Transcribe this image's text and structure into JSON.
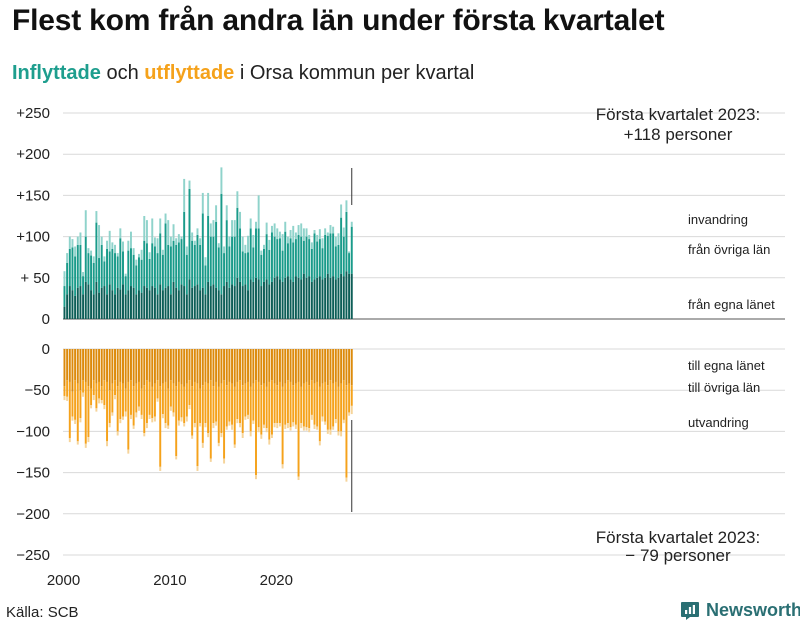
{
  "title": "Flest kom från andra län under första kvartalet",
  "subtitle": {
    "inflyttade": "Inflyttade",
    "och": "och",
    "utflyttade": "utflyttade",
    "rest": "i Orsa kommun per kvartal"
  },
  "source": "Källa: SCB",
  "brand": "Newsworthy",
  "colors": {
    "in_egna": "#0d5e57",
    "in_ovriga": "#1a9b8a",
    "in_invandring": "#8fd3cb",
    "ut_egna": "#dc8a0b",
    "ut_ovriga": "#f5a21b",
    "ut_utvandring": "#f6d49a",
    "grid": "#d9d9d9",
    "brand": "#2a6f73"
  },
  "chart_data": {
    "type": "stacked-bar",
    "x_unit": "quarter",
    "start_year": 2000,
    "start_quarter": 1,
    "x_ticks": [
      "2000",
      "2010",
      "2020"
    ],
    "upper_ticks": [
      "+250",
      "+200",
      "+150",
      "+100",
      "+ 50",
      "0"
    ],
    "lower_ticks": [
      "0",
      "−50",
      "−100",
      "−150",
      "−200",
      "−250"
    ],
    "upper_ylim": [
      0,
      250
    ],
    "lower_ylim": [
      -250,
      0
    ],
    "inflyttade": {
      "from_egna_lanet": [
        15,
        30,
        40,
        35,
        28,
        38,
        40,
        30,
        45,
        42,
        35,
        30,
        45,
        32,
        38,
        40,
        30,
        42,
        35,
        30,
        38,
        36,
        42,
        30,
        35,
        40,
        38,
        30,
        35,
        32,
        40,
        38,
        35,
        40,
        38,
        30,
        42,
        35,
        38,
        40,
        30,
        45,
        38,
        35,
        42,
        40,
        30,
        48,
        38,
        40,
        42,
        35,
        38,
        30,
        45,
        40,
        42,
        38,
        35,
        30,
        40,
        45,
        38,
        42,
        40,
        50,
        45,
        40,
        42,
        35,
        48,
        45,
        50,
        48,
        40,
        45,
        48,
        42,
        45,
        50,
        52,
        48,
        45,
        50,
        52,
        48,
        45,
        52,
        50,
        48,
        55,
        50,
        52,
        45,
        48,
        50,
        52,
        48,
        50,
        55,
        50,
        52,
        48,
        50,
        55,
        52,
        58,
        55,
        55
      ],
      "from_ovriga_lan": [
        25,
        38,
        45,
        52,
        48,
        52,
        50,
        22,
        55,
        38,
        42,
        38,
        72,
        42,
        52,
        30,
        55,
        40,
        50,
        50,
        38,
        62,
        40,
        22,
        48,
        46,
        40,
        35,
        40,
        40,
        55,
        54,
        38,
        52,
        50,
        50,
        62,
        43,
        78,
        50,
        58,
        50,
        52,
        58,
        55,
        90,
        48,
        110,
        57,
        50,
        60,
        55,
        90,
        35,
        80,
        60,
        58,
        80,
        52,
        122,
        40,
        75,
        50,
        58,
        60,
        85,
        65,
        42,
        38,
        46,
        62,
        42,
        60,
        62,
        38,
        40,
        55,
        42,
        60,
        50,
        45,
        50,
        38,
        56,
        40,
        50,
        48,
        45,
        52,
        52,
        40,
        50,
        45,
        40,
        56,
        44,
        45,
        38,
        52,
        46,
        54,
        52,
        40,
        40,
        68,
        48,
        72,
        25,
        57
      ],
      "invandring": [
        18,
        12,
        15,
        10,
        12,
        10,
        15,
        5,
        32,
        6,
        6,
        8,
        14,
        40,
        10,
        6,
        10,
        25,
        8,
        10,
        4,
        12,
        12,
        3,
        12,
        20,
        8,
        7,
        4,
        12,
        30,
        28,
        8,
        30,
        11,
        18,
        18,
        6,
        12,
        30,
        12,
        20,
        8,
        10,
        3,
        40,
        10,
        10,
        10,
        5,
        8,
        8,
        25,
        10,
        28,
        16,
        20,
        20,
        5,
        32,
        8,
        18,
        12,
        20,
        20,
        20,
        20,
        18,
        10,
        20,
        12,
        15,
        8,
        40,
        5,
        5,
        14,
        12,
        8,
        16,
        13,
        8,
        20,
        12,
        8,
        10,
        20,
        8,
        12,
        16,
        15,
        10,
        5,
        8,
        4,
        8,
        12,
        12,
        8,
        4,
        10,
        8,
        12,
        14,
        16,
        11,
        14,
        2,
        6
      ]
    },
    "utflyttade": {
      "till_egna_lanet": [
        -45,
        -38,
        -40,
        -52,
        -38,
        -42,
        -50,
        -38,
        -40,
        -45,
        -48,
        -38,
        -42,
        -40,
        -45,
        -38,
        -40,
        -50,
        -42,
        -38,
        -45,
        -40,
        -42,
        -48,
        -40,
        -38,
        -45,
        -42,
        -40,
        -48,
        -44,
        -38,
        -40,
        -46,
        -42,
        -38,
        -45,
        -42,
        -40,
        -48,
        -38,
        -42,
        -45,
        -40,
        -43,
        -46,
        -42,
        -38,
        -45,
        -40,
        -42,
        -48,
        -44,
        -40,
        -42,
        -38,
        -45,
        -40,
        -46,
        -42,
        -38,
        -44,
        -40,
        -42,
        -46,
        -40,
        -38,
        -44,
        -42,
        -40,
        -46,
        -42,
        -38,
        -40,
        -44,
        -42,
        -46,
        -40,
        -38,
        -42,
        -44,
        -40,
        -46,
        -42,
        -38,
        -40,
        -44,
        -42,
        -40,
        -46,
        -42,
        -40,
        -44,
        -38,
        -42,
        -40,
        -46,
        -42,
        -40,
        -44,
        -38,
        -42,
        -40,
        -46,
        -42,
        -38,
        -44,
        -42,
        -44
      ],
      "till_ovriga_lan": [
        -12,
        -20,
        -68,
        -30,
        -48,
        -70,
        -34,
        -15,
        -75,
        -62,
        -20,
        -18,
        -30,
        -20,
        -17,
        -30,
        -72,
        -40,
        -35,
        -18,
        -55,
        -45,
        -40,
        -28,
        -82,
        -42,
        -48,
        -35,
        -30,
        -32,
        -58,
        -52,
        -40,
        -38,
        -40,
        -22,
        -98,
        -37,
        -50,
        -45,
        -32,
        -35,
        -85,
        -47,
        -40,
        -44,
        -40,
        -30,
        -60,
        -50,
        -100,
        -42,
        -70,
        -50,
        -60,
        -95,
        -45,
        -48,
        -68,
        -60,
        -95,
        -50,
        -48,
        -50,
        -70,
        -45,
        -52,
        -58,
        -40,
        -40,
        -54,
        -45,
        -115,
        -55,
        -60,
        -50,
        -50,
        -70,
        -66,
        -48,
        -46,
        -50,
        -94,
        -50,
        -52,
        -55,
        -45,
        -50,
        -115,
        -44,
        -52,
        -55,
        -52,
        -42,
        -50,
        -54,
        -66,
        -40,
        -48,
        -54,
        -60,
        -52,
        -45,
        -54,
        -58,
        -48,
        -112,
        -35,
        -25
      ],
      "utvandring": [
        -5,
        -5,
        -5,
        -5,
        -5,
        -4,
        -5,
        -5,
        -5,
        -6,
        -4,
        -6,
        -4,
        -6,
        -4,
        -5,
        -6,
        -5,
        -4,
        -5,
        -5,
        -5,
        -4,
        -6,
        -5,
        -5,
        -4,
        -6,
        -5,
        -5,
        -4,
        -6,
        -5,
        -5,
        -6,
        -4,
        -5,
        -5,
        -6,
        -4,
        -5,
        -5,
        -4,
        -6,
        -5,
        -4,
        -6,
        -5,
        -4,
        -5,
        -6,
        -4,
        -6,
        -5,
        -5,
        -4,
        -6,
        -5,
        -4,
        -5,
        -6,
        -4,
        -5,
        -6,
        -4,
        -5,
        -5,
        -6,
        -4,
        -5,
        -6,
        -4,
        -5,
        -6,
        -5,
        -4,
        -5,
        -6,
        -4,
        -5,
        -6,
        -4,
        -5,
        -5,
        -6,
        -4,
        -5,
        -5,
        -4,
        -6,
        -5,
        -4,
        -5,
        -6,
        -5,
        -4,
        -5,
        -6,
        -4,
        -5,
        -6,
        -4,
        -5,
        -5,
        -6,
        -4,
        -5,
        -4,
        -10
      ]
    },
    "annotations": {
      "upper_note_line1": "Första kvartalet 2023:",
      "upper_note_line2": "+118 personer",
      "lower_note_line1": "Första kvartalet 2023:",
      "lower_note_line2": "− 79 personer",
      "in_labels": [
        "invandring",
        "från övriga län",
        "från egna länet"
      ],
      "out_labels": [
        "till egna länet",
        "till övriga län",
        "utvandring"
      ]
    }
  }
}
